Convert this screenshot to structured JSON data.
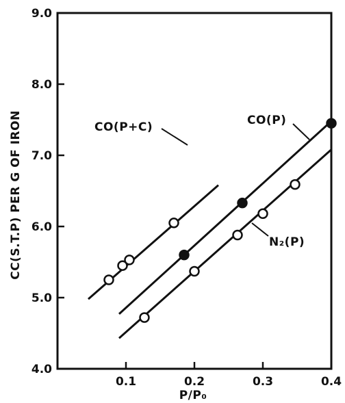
{
  "chart_data": {
    "type": "scatter",
    "xlabel": "P/P₀",
    "ylabel": "CC(S.T.P) PER G OF IRON",
    "xlim": [
      0.0,
      0.4
    ],
    "ylim": [
      4.0,
      9.0
    ],
    "x_ticks": [
      "0.1",
      "0.2",
      "0.3",
      "0.4"
    ],
    "y_ticks": [
      "4.0",
      "5.0",
      "6.0",
      "7.0",
      "8.0",
      "9.0"
    ],
    "grid": false,
    "series": [
      {
        "name": "CO(P+C)",
        "marker": "open-circle",
        "points": [
          [
            0.075,
            5.25
          ],
          [
            0.095,
            5.45
          ],
          [
            0.105,
            5.53
          ],
          [
            0.17,
            6.05
          ]
        ],
        "fit_line": [
          [
            0.045,
            4.98
          ],
          [
            0.235,
            6.58
          ]
        ]
      },
      {
        "name": "CO(P)",
        "marker": "filled-circle",
        "points": [
          [
            0.185,
            5.6
          ],
          [
            0.27,
            6.33
          ],
          [
            0.4,
            7.45
          ]
        ],
        "fit_line": [
          [
            0.09,
            4.77
          ],
          [
            0.4,
            7.48
          ]
        ]
      },
      {
        "name": "N₂(P)",
        "marker": "open-circle",
        "points": [
          [
            0.127,
            4.72
          ],
          [
            0.2,
            5.37
          ],
          [
            0.263,
            5.88
          ],
          [
            0.3,
            6.18
          ],
          [
            0.347,
            6.59
          ]
        ],
        "fit_line": [
          [
            0.09,
            4.43
          ],
          [
            0.4,
            7.08
          ]
        ]
      }
    ]
  }
}
